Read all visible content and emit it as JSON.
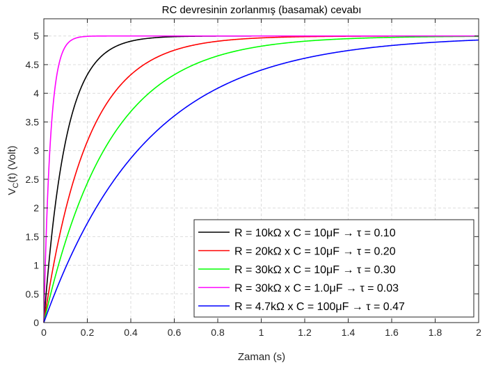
{
  "chart_data": {
    "type": "line",
    "title": "RC devresinin zorlanmış (basamak) cevabı",
    "xlabel": "Zaman (s)",
    "ylabel_main": "V",
    "ylabel_sub": "C",
    "ylabel_rest": "(t) (Volt)",
    "xlim": [
      0,
      2
    ],
    "ylim": [
      0,
      5.3
    ],
    "x_ticks": [
      0,
      0.2,
      0.4,
      0.6,
      0.8,
      1,
      1.2,
      1.4,
      1.6,
      1.8,
      2
    ],
    "x_tick_labels": [
      "0",
      "0.2",
      "0.4",
      "0.6",
      "0.8",
      "1",
      "1.2",
      "1.4",
      "1.6",
      "1.8",
      "2"
    ],
    "y_ticks": [
      0,
      0.5,
      1,
      1.5,
      2,
      2.5,
      3,
      3.5,
      4,
      4.5,
      5
    ],
    "y_tick_labels": [
      "0",
      "0.5",
      "1",
      "1.5",
      "2",
      "2.5",
      "3",
      "3.5",
      "4",
      "4.5",
      "5"
    ],
    "grid": true,
    "legend_position": "bottom-right",
    "amplitude": 5,
    "series": [
      {
        "name": "R = 10kΩ  x  C = 10μF  →  τ = 0.10",
        "tau": 0.1,
        "color": "#000000"
      },
      {
        "name": "R = 20kΩ  x  C = 10μF  →  τ = 0.20",
        "tau": 0.2,
        "color": "#ff0000"
      },
      {
        "name": "R = 30kΩ  x  C = 10μF  →  τ = 0.30",
        "tau": 0.3,
        "color": "#00ff00"
      },
      {
        "name": "R = 30kΩ  x  C = 1.0μF  →  τ = 0.03",
        "tau": 0.03,
        "color": "#ff00ff"
      },
      {
        "name": "R = 4.7kΩ  x  C = 100μF  →  τ = 0.47",
        "tau": 0.47,
        "color": "#0000ff"
      }
    ]
  }
}
